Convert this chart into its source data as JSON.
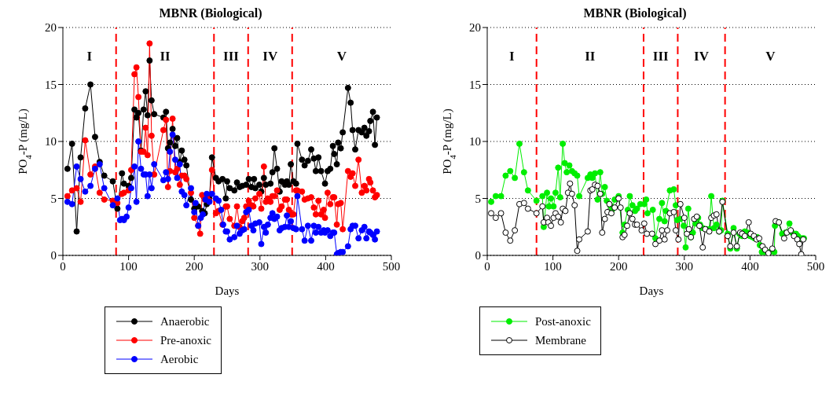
{
  "chart_data": [
    {
      "type": "line",
      "title": "MBNR (Biological)",
      "xlabel": "Days",
      "ylabel": "PO$_{4}$-P (mg/L)",
      "xlim": [
        0,
        500
      ],
      "xticks": [
        0,
        100,
        200,
        300,
        400,
        500
      ],
      "ylim": [
        0,
        20
      ],
      "yticks": [
        0,
        5,
        10,
        15,
        20
      ],
      "grid": "y",
      "legend": "bottom",
      "marker": "circle",
      "line_style": "solid",
      "ref_lines": [
        {
          "axis": "x",
          "value": 81,
          "color": "#ff0000",
          "line_style": "dashed"
        },
        {
          "axis": "x",
          "value": 230,
          "color": "#ff0000",
          "line_style": "dashed"
        },
        {
          "axis": "x",
          "value": 282,
          "color": "#ff0000",
          "line_style": "dashed"
        },
        {
          "axis": "x",
          "value": 349,
          "color": "#ff0000",
          "line_style": "dashed"
        }
      ],
      "annotations": [
        "I",
        "II",
        "III",
        "IV",
        "V"
      ],
      "series": [
        {
          "name": "Anaerobic",
          "color": "#000000",
          "x": [
            7,
            14,
            21,
            27,
            34,
            42,
            49,
            56,
            63,
            76,
            83,
            90,
            93,
            100,
            104,
            109,
            112,
            115,
            119,
            123,
            126,
            129,
            132,
            135,
            139,
            153,
            157,
            160,
            163,
            167,
            171,
            174,
            178,
            181,
            185,
            188,
            195,
            200,
            206,
            212,
            216,
            219,
            223,
            227,
            233,
            237,
            243,
            248,
            250,
            254,
            261,
            265,
            269,
            273,
            279,
            283,
            287,
            291,
            293,
            299,
            302,
            306,
            309,
            316,
            319,
            322,
            326,
            330,
            333,
            338,
            341,
            344,
            347,
            351,
            355,
            357,
            364,
            368,
            373,
            378,
            382,
            385,
            389,
            393,
            399,
            403,
            407,
            411,
            413,
            417,
            419,
            423,
            426,
            434,
            438,
            441,
            445,
            450,
            455,
            459,
            462,
            466,
            468,
            472,
            475,
            478
          ],
          "values": [
            7.6,
            9.8,
            2.1,
            8.6,
            12.9,
            15.0,
            10.4,
            8.2,
            7.0,
            6.5,
            4.1,
            7.2,
            6.3,
            6.1,
            6.8,
            12.8,
            12.1,
            12.5,
            9.2,
            12.8,
            14.4,
            12.3,
            17.1,
            13.6,
            12.4,
            12.1,
            12.6,
            9.4,
            9.9,
            11.1,
            9.6,
            10.3,
            8.2,
            9.2,
            8.4,
            7.9,
            4.9,
            4.1,
            4.3,
            3.9,
            3.7,
            4.5,
            5.0,
            8.6,
            6.8,
            6.5,
            6.7,
            5.0,
            6.5,
            5.9,
            5.7,
            6.4,
            6.0,
            6.1,
            6.2,
            6.7,
            6.0,
            6.7,
            5.9,
            6.2,
            5.6,
            6.8,
            6.2,
            6.3,
            7.3,
            9.4,
            7.6,
            5.6,
            6.5,
            6.2,
            6.5,
            6.2,
            8.0,
            6.5,
            6.3,
            9.8,
            8.4,
            7.9,
            8.3,
            9.3,
            8.5,
            7.4,
            8.6,
            7.4,
            6.3,
            7.4,
            7.6,
            9.6,
            8.9,
            8.0,
            9.9,
            9.4,
            10.8,
            14.7,
            13.4,
            11.0,
            9.3,
            11.0,
            10.8,
            11.2,
            10.5,
            10.9,
            11.8,
            12.6,
            9.7,
            12.1
          ]
        },
        {
          "name": "Pre-anoxic",
          "color": "#ff0000",
          "x": [
            7,
            14,
            21,
            27,
            34,
            42,
            49,
            56,
            63,
            76,
            83,
            90,
            93,
            100,
            104,
            109,
            112,
            115,
            119,
            123,
            126,
            129,
            132,
            135,
            139,
            153,
            157,
            160,
            163,
            167,
            171,
            174,
            178,
            181,
            185,
            188,
            195,
            200,
            206,
            209,
            212,
            216,
            219,
            223,
            227,
            233,
            237,
            243,
            248,
            250,
            254,
            261,
            265,
            269,
            273,
            276,
            279,
            283,
            287,
            290,
            293,
            299,
            302,
            306,
            309,
            312,
            316,
            319,
            322,
            326,
            330,
            333,
            338,
            341,
            344,
            347,
            351,
            355,
            357,
            364,
            368,
            373,
            378,
            382,
            385,
            389,
            393,
            397,
            399,
            403,
            407,
            411,
            413,
            417,
            419,
            423,
            426,
            434,
            438,
            441,
            445,
            450,
            455,
            459,
            462,
            466,
            468,
            472,
            475,
            478
          ],
          "values": [
            5.2,
            5.7,
            5.9,
            4.7,
            10.1,
            7.1,
            7.8,
            5.5,
            4.9,
            4.8,
            4.6,
            5.4,
            5.5,
            5.7,
            7.5,
            15.9,
            16.5,
            13.9,
            9.1,
            9.1,
            11.2,
            8.8,
            18.6,
            10.5,
            7.1,
            11.0,
            11.9,
            6.0,
            7.4,
            12.0,
            7.3,
            7.6,
            6.2,
            7.0,
            7.0,
            6.7,
            5.5,
            3.3,
            2.6,
            1.9,
            5.3,
            4.9,
            5.1,
            4.8,
            7.5,
            3.7,
            3.9,
            2.7,
            4.3,
            4.3,
            3.2,
            2.6,
            4.3,
            2.5,
            3.0,
            3.3,
            4.3,
            4.8,
            4.4,
            4.3,
            5.0,
            5.4,
            4.1,
            7.8,
            4.7,
            5.0,
            4.7,
            5.2,
            5.2,
            5.7,
            4.0,
            4.3,
            4.9,
            4.9,
            4.0,
            3.6,
            3.6,
            5.7,
            5.7,
            5.6,
            4.9,
            5.0,
            5.1,
            4.2,
            3.6,
            4.8,
            3.6,
            4.0,
            3.3,
            5.5,
            4.5,
            5.1,
            5.1,
            2.7,
            4.5,
            4.6,
            2.3,
            7.4,
            6.9,
            7.2,
            6.1,
            8.4,
            5.5,
            6.1,
            5.7,
            6.7,
            6.4,
            5.7,
            5.1,
            5.3
          ]
        },
        {
          "name": "Aerobic",
          "color": "#0000ff",
          "x": [
            7,
            14,
            21,
            27,
            34,
            42,
            49,
            56,
            63,
            76,
            83,
            87,
            90,
            93,
            97,
            100,
            104,
            109,
            112,
            115,
            119,
            123,
            126,
            129,
            132,
            135,
            139,
            153,
            157,
            160,
            163,
            167,
            171,
            174,
            178,
            181,
            185,
            188,
            195,
            200,
            202,
            206,
            210,
            213,
            217,
            219,
            223,
            227,
            233,
            237,
            241,
            244,
            248,
            250,
            254,
            261,
            265,
            269,
            273,
            276,
            279,
            283,
            287,
            290,
            293,
            299,
            302,
            306,
            309,
            312,
            316,
            319,
            322,
            326,
            330,
            333,
            338,
            341,
            344,
            347,
            351,
            355,
            357,
            364,
            368,
            373,
            378,
            382,
            385,
            389,
            393,
            397,
            399,
            403,
            407,
            411,
            413,
            417,
            419,
            423,
            426,
            434,
            438,
            441,
            445,
            450,
            455,
            459,
            462,
            466,
            468,
            472,
            475,
            478
          ],
          "values": [
            4.7,
            4.5,
            7.8,
            6.7,
            5.6,
            6.1,
            7.6,
            8.0,
            5.9,
            4.4,
            5.0,
            3.1,
            3.2,
            3.1,
            3.4,
            4.2,
            5.9,
            7.8,
            4.7,
            10.0,
            7.6,
            7.1,
            7.1,
            5.2,
            7.1,
            5.9,
            8.0,
            6.6,
            7.3,
            6.7,
            9.1,
            10.6,
            8.4,
            6.8,
            8.0,
            5.6,
            5.3,
            4.4,
            5.9,
            3.8,
            4.6,
            2.6,
            3.3,
            3.6,
            4.9,
            5.4,
            4.7,
            5.4,
            5.0,
            4.8,
            4.0,
            2.7,
            2.1,
            2.1,
            1.4,
            1.6,
            2.6,
            1.9,
            2.2,
            2.3,
            3.8,
            4.0,
            2.6,
            2.2,
            2.8,
            2.9,
            1.0,
            2.5,
            2.0,
            2.7,
            3.3,
            3.7,
            3.2,
            3.4,
            2.2,
            2.4,
            2.5,
            3.5,
            2.5,
            3.0,
            2.4,
            2.3,
            5.2,
            2.3,
            1.3,
            2.6,
            1.3,
            2.6,
            2.0,
            2.5,
            2.0,
            2.2,
            2.0,
            2.2,
            1.7,
            2.0,
            2.0,
            0.1,
            0.2,
            0.3,
            0.3,
            0.8,
            2.3,
            2.6,
            2.6,
            1.5,
            2.2,
            2.5,
            1.5,
            2.1,
            2.0,
            1.8,
            1.4,
            2.1
          ]
        }
      ]
    },
    {
      "type": "line",
      "title": "MBNR (Biological)",
      "xlabel": "Days",
      "ylabel": "PO$_{4}$-P (mg/L)",
      "xlim": [
        0,
        500
      ],
      "xticks": [
        0,
        100,
        200,
        300,
        400,
        500
      ],
      "ylim": [
        0,
        20
      ],
      "yticks": [
        0,
        5,
        10,
        15,
        20
      ],
      "grid": "y",
      "legend": "bottom",
      "line_style": "solid",
      "ref_lines": [
        {
          "axis": "x",
          "value": 75,
          "color": "#ff0000",
          "line_style": "dashed"
        },
        {
          "axis": "x",
          "value": 238,
          "color": "#ff0000",
          "line_style": "dashed"
        },
        {
          "axis": "x",
          "value": 290,
          "color": "#ff0000",
          "line_style": "dashed"
        },
        {
          "axis": "x",
          "value": 362,
          "color": "#ff0000",
          "line_style": "dashed"
        }
      ],
      "annotations": [
        "I",
        "II",
        "III",
        "IV",
        "V"
      ],
      "series": [
        {
          "name": "Post-anoxic",
          "color": "#00ee00",
          "marker": "circle",
          "x": [
            6,
            13,
            21,
            28,
            35,
            42,
            49,
            56,
            62,
            75,
            84,
            86,
            91,
            94,
            97,
            101,
            104,
            108,
            111,
            115,
            118,
            121,
            125,
            129,
            133,
            137,
            140,
            153,
            157,
            160,
            164,
            168,
            172,
            175,
            179,
            182,
            187,
            190,
            194,
            200,
            206,
            209,
            214,
            217,
            221,
            225,
            228,
            233,
            239,
            242,
            244,
            252,
            256,
            262,
            266,
            270,
            272,
            278,
            284,
            287,
            289,
            294,
            299,
            302,
            306,
            310,
            313,
            317,
            321,
            324,
            328,
            334,
            338,
            341,
            345,
            349,
            353,
            356,
            358,
            366,
            370,
            375,
            380,
            384,
            388,
            392,
            396,
            400,
            404,
            407,
            411,
            415,
            418,
            422,
            430,
            437,
            438,
            443,
            449,
            454,
            460,
            464,
            470,
            473,
            479,
            482
          ],
          "values": [
            4.7,
            5.2,
            5.2,
            7.0,
            7.4,
            6.8,
            9.8,
            7.3,
            5.7,
            4.8,
            5.2,
            2.5,
            5.5,
            4.3,
            5.0,
            4.3,
            5.5,
            7.7,
            5.1,
            9.8,
            8.1,
            7.3,
            7.9,
            7.4,
            7.2,
            7.0,
            5.2,
            6.8,
            7.1,
            6.8,
            7.2,
            4.9,
            7.3,
            5.4,
            6.0,
            4.8,
            4.4,
            4.0,
            4.9,
            5.2,
            2.0,
            2.7,
            4.0,
            5.2,
            4.4,
            3.9,
            4.1,
            4.5,
            4.5,
            4.9,
            3.7,
            4.0,
            1.5,
            3.2,
            4.6,
            3.0,
            3.9,
            5.7,
            5.8,
            4.4,
            3.1,
            3.2,
            2.6,
            0.7,
            4.1,
            1.6,
            2.0,
            2.8,
            3.3,
            2.7,
            2.4,
            2.3,
            2.3,
            5.2,
            2.4,
            2.7,
            2.1,
            2.2,
            4.8,
            1.9,
            0.6,
            2.4,
            0.6,
            1.9,
            1.7,
            2.1,
            2.0,
            1.7,
            1.6,
            1.5,
            1.6,
            0.9,
            0.3,
            0.3,
            0.3,
            0.3,
            2.6,
            2.9,
            1.9,
            2.0,
            2.8,
            2.0,
            1.9,
            1.7,
            1.5,
            1.5
          ]
        },
        {
          "name": "Membrane",
          "color": "#000000",
          "marker": "circle-open",
          "x": [
            6,
            13,
            21,
            28,
            35,
            42,
            49,
            56,
            62,
            75,
            84,
            86,
            91,
            93,
            97,
            101,
            104,
            108,
            112,
            115,
            119,
            123,
            126,
            129,
            133,
            137,
            140,
            153,
            157,
            160,
            164,
            168,
            172,
            175,
            179,
            183,
            186,
            189,
            194,
            200,
            203,
            206,
            209,
            213,
            217,
            221,
            225,
            228,
            235,
            239,
            243,
            251,
            256,
            262,
            266,
            270,
            274,
            278,
            284,
            287,
            291,
            294,
            300,
            304,
            307,
            310,
            315,
            319,
            323,
            328,
            332,
            338,
            341,
            345,
            349,
            353,
            358,
            366,
            370,
            375,
            380,
            385,
            388,
            392,
            398,
            401,
            406,
            410,
            414,
            419,
            423,
            428,
            434,
            439,
            444,
            452,
            456,
            462,
            467,
            472,
            475,
            478,
            481
          ],
          "values": [
            3.7,
            3.3,
            3.7,
            2.0,
            1.3,
            2.2,
            4.5,
            4.6,
            4.1,
            3.7,
            4.3,
            2.9,
            3.3,
            2.9,
            2.6,
            3.3,
            3.7,
            3.4,
            2.9,
            4.1,
            3.9,
            5.5,
            6.3,
            5.4,
            4.4,
            0.4,
            1.4,
            2.1,
            5.7,
            5.8,
            6.2,
            6.1,
            5.4,
            2.0,
            3.2,
            3.8,
            4.5,
            3.7,
            4.2,
            5.0,
            4.2,
            1.6,
            1.8,
            2.6,
            3.7,
            3.2,
            2.7,
            2.7,
            2.2,
            2.8,
            1.9,
            1.9,
            1.0,
            1.3,
            2.2,
            1.4,
            2.2,
            3.7,
            3.8,
            2.2,
            1.4,
            4.5,
            3.3,
            1.9,
            2.3,
            1.6,
            3.2,
            3.4,
            2.6,
            0.7,
            2.3,
            2.1,
            3.3,
            3.5,
            3.6,
            2.1,
            4.7,
            1.7,
            0.8,
            2.0,
            0.8,
            2.0,
            1.9,
            1.7,
            2.9,
            1.9,
            1.7,
            1.4,
            1.5,
            0.8,
            0.5,
            0.2,
            0.6,
            3.0,
            2.9,
            1.5,
            2.0,
            2.2,
            1.7,
            1.4,
            1.0,
            0.1,
            1.4
          ]
        }
      ]
    }
  ]
}
